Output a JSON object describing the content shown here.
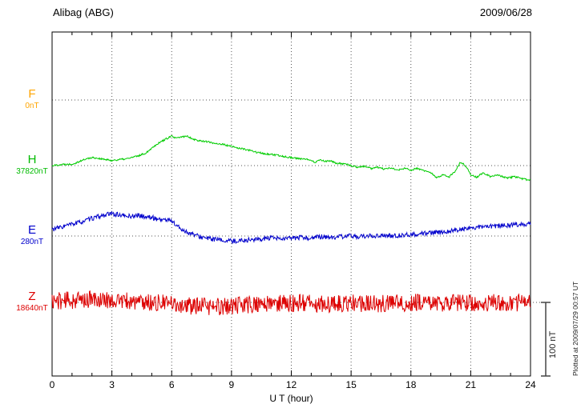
{
  "annotations": {
    "plotted_at": "Plotted at 2009/07/29 00:57 UT",
    "scale_bar_label": "100 nT"
  },
  "chart_data": {
    "type": "line",
    "title": "Alibag (ABG)",
    "station": "Alibag",
    "station_code": "ABG",
    "date": "2009/06/28",
    "xlabel": "U T (hour)",
    "x_range": [
      0,
      24
    ],
    "x_ticks": [
      0,
      3,
      6,
      9,
      12,
      15,
      18,
      21,
      24
    ],
    "x_minor_tick_step_hours": 1,
    "grid": "dotted vertical lines every 3 hours; dotted horizontal baseline per component",
    "legend_position": "left-margin component labels",
    "scale_bar_nT": 100,
    "series": [
      {
        "name": "F",
        "baseline_label": "0nT",
        "baseline_value_nT": 0,
        "color": "#ffa500",
        "visible": false,
        "noise_nT": 0,
        "keypoints": [
          [
            0,
            0
          ],
          [
            24,
            0
          ]
        ]
      },
      {
        "name": "H",
        "baseline_label": "37820nT",
        "baseline_value_nT": 37820,
        "color": "#00cc00",
        "visible": true,
        "noise_nT": 1.2,
        "keypoints": [
          [
            0,
            0
          ],
          [
            0.3,
            1
          ],
          [
            0.7,
            2
          ],
          [
            1,
            2
          ],
          [
            1.3,
            5
          ],
          [
            1.7,
            9
          ],
          [
            2,
            11
          ],
          [
            2.3,
            10
          ],
          [
            2.7,
            8
          ],
          [
            3,
            7
          ],
          [
            3.3,
            8
          ],
          [
            3.7,
            9
          ],
          [
            4,
            11
          ],
          [
            4.3,
            13
          ],
          [
            4.7,
            17
          ],
          [
            5,
            24
          ],
          [
            5.3,
            30
          ],
          [
            5.7,
            36
          ],
          [
            6,
            40
          ],
          [
            6.2,
            37
          ],
          [
            6.5,
            39
          ],
          [
            6.8,
            40
          ],
          [
            7,
            37
          ],
          [
            7.3,
            34
          ],
          [
            7.7,
            33
          ],
          [
            8,
            31
          ],
          [
            8.3,
            30
          ],
          [
            8.7,
            28
          ],
          [
            9,
            26
          ],
          [
            9.3,
            24
          ],
          [
            9.7,
            22
          ],
          [
            10,
            20
          ],
          [
            10.3,
            18
          ],
          [
            10.7,
            16
          ],
          [
            11,
            15
          ],
          [
            11.5,
            13
          ],
          [
            12,
            11
          ],
          [
            12.5,
            9
          ],
          [
            13,
            8
          ],
          [
            13.2,
            4
          ],
          [
            13.4,
            8
          ],
          [
            13.7,
            6
          ],
          [
            14,
            6
          ],
          [
            14.3,
            3
          ],
          [
            14.7,
            2
          ],
          [
            15,
            0
          ],
          [
            15.3,
            -2
          ],
          [
            15.7,
            -1
          ],
          [
            16,
            -4
          ],
          [
            16.3,
            -2
          ],
          [
            16.7,
            -5
          ],
          [
            17,
            -3
          ],
          [
            17.3,
            -6
          ],
          [
            17.7,
            -4
          ],
          [
            18,
            -6
          ],
          [
            18.3,
            -4
          ],
          [
            18.7,
            -7
          ],
          [
            19,
            -10
          ],
          [
            19.3,
            -17
          ],
          [
            19.6,
            -12
          ],
          [
            19.9,
            -16
          ],
          [
            20.2,
            -8
          ],
          [
            20.5,
            5
          ],
          [
            20.8,
            -2
          ],
          [
            21,
            -12
          ],
          [
            21.3,
            -16
          ],
          [
            21.6,
            -10
          ],
          [
            22,
            -15
          ],
          [
            22.4,
            -13
          ],
          [
            22.8,
            -17
          ],
          [
            23.2,
            -15
          ],
          [
            23.6,
            -18
          ],
          [
            24,
            -20
          ]
        ]
      },
      {
        "name": "E",
        "baseline_label": "280nT",
        "baseline_value_nT": 280,
        "color": "#0000cc",
        "visible": true,
        "noise_nT": 3.2,
        "keypoints": [
          [
            0,
            9
          ],
          [
            0.3,
            11
          ],
          [
            0.7,
            14
          ],
          [
            1,
            16
          ],
          [
            1.3,
            18
          ],
          [
            1.7,
            21
          ],
          [
            2,
            24
          ],
          [
            2.3,
            26
          ],
          [
            2.7,
            29
          ],
          [
            3,
            30
          ],
          [
            3.3,
            29
          ],
          [
            3.7,
            27
          ],
          [
            4,
            27
          ],
          [
            4.3,
            28
          ],
          [
            4.7,
            26
          ],
          [
            5,
            25
          ],
          [
            5.3,
            23
          ],
          [
            5.7,
            22
          ],
          [
            6,
            21
          ],
          [
            6.2,
            15
          ],
          [
            6.5,
            9
          ],
          [
            6.8,
            5
          ],
          [
            7,
            3
          ],
          [
            7.3,
            0
          ],
          [
            7.7,
            -3
          ],
          [
            8,
            -4
          ],
          [
            8.5,
            -6
          ],
          [
            9,
            -7
          ],
          [
            9.5,
            -6
          ],
          [
            10,
            -5
          ],
          [
            10.5,
            -4
          ],
          [
            11,
            -3
          ],
          [
            11.5,
            -4
          ],
          [
            12,
            -3
          ],
          [
            12.5,
            -2
          ],
          [
            13,
            -3
          ],
          [
            13.5,
            -1
          ],
          [
            14,
            -2
          ],
          [
            14.5,
            -1
          ],
          [
            15,
            0
          ],
          [
            15.5,
            -1
          ],
          [
            16,
            0
          ],
          [
            16.5,
            1
          ],
          [
            17,
            0
          ],
          [
            17.5,
            1
          ],
          [
            18,
            2
          ],
          [
            18.5,
            3
          ],
          [
            19,
            4
          ],
          [
            19.5,
            5
          ],
          [
            20,
            7
          ],
          [
            20.5,
            9
          ],
          [
            21,
            11
          ],
          [
            21.5,
            12
          ],
          [
            22,
            13
          ],
          [
            22.5,
            14
          ],
          [
            23,
            15
          ],
          [
            23.5,
            16
          ],
          [
            24,
            17
          ]
        ]
      },
      {
        "name": "Z",
        "baseline_label": "18640nT",
        "baseline_value_nT": 18640,
        "color": "#dd0000",
        "visible": true,
        "noise_nT": 12,
        "keypoints": [
          [
            0,
            2
          ],
          [
            1,
            3
          ],
          [
            2,
            4
          ],
          [
            3,
            3
          ],
          [
            4,
            1
          ],
          [
            5,
            0
          ],
          [
            6,
            -2
          ],
          [
            7,
            -5
          ],
          [
            8,
            -6
          ],
          [
            9,
            -5
          ],
          [
            10,
            -3
          ],
          [
            11,
            -2
          ],
          [
            12,
            -1
          ],
          [
            13,
            -1
          ],
          [
            14,
            -2
          ],
          [
            15,
            -1
          ],
          [
            16,
            -2
          ],
          [
            17,
            -1
          ],
          [
            18,
            0
          ],
          [
            19,
            -1
          ],
          [
            20,
            0
          ],
          [
            21,
            -1
          ],
          [
            22,
            0
          ],
          [
            23,
            -1
          ],
          [
            24,
            0
          ]
        ]
      }
    ]
  }
}
